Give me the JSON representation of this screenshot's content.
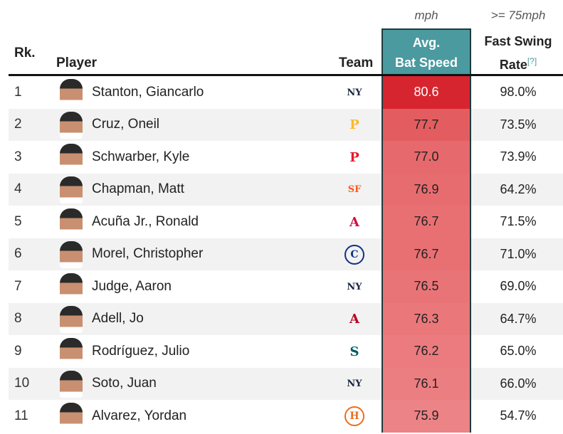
{
  "headers": {
    "rank": "Rk.",
    "player": "Player",
    "team": "Team",
    "bat_unit": "mph",
    "bat_line1": "Avg.",
    "bat_line2": "Bat Speed",
    "fsr_unit": ">= 75mph",
    "fsr_line1": "Fast Swing",
    "fsr_line2": "Rate",
    "fsr_help": "[?]"
  },
  "colors": {
    "header_accent": "#4a9aa0",
    "row_alt": "#f2f2f2"
  },
  "rows": [
    {
      "rank": "1",
      "player": "Stanton, Giancarlo",
      "team_icon": "yankees-logo",
      "team_glyph": "NY",
      "team_color": "#1c2841",
      "bat_speed": "80.6",
      "bat_bg": "#d7252f",
      "bat_fg": "#ffffff",
      "fsr": "98.0%"
    },
    {
      "rank": "2",
      "player": "Cruz, Oneil",
      "team_icon": "pirates-logo",
      "team_glyph": "P",
      "team_color": "#fdb827",
      "bat_speed": "77.7",
      "bat_bg": "#e35d60",
      "bat_fg": "#222222",
      "fsr": "73.5%"
    },
    {
      "rank": "3",
      "player": "Schwarber, Kyle",
      "team_icon": "phillies-logo",
      "team_glyph": "P",
      "team_color": "#e81828",
      "bat_speed": "77.0",
      "bat_bg": "#e66a6d",
      "bat_fg": "#222222",
      "fsr": "73.9%"
    },
    {
      "rank": "4",
      "player": "Chapman, Matt",
      "team_icon": "giants-logo",
      "team_glyph": "SF",
      "team_color": "#fd5a1e",
      "bat_speed": "76.9",
      "bat_bg": "#e76c6f",
      "bat_fg": "#222222",
      "fsr": "64.2%"
    },
    {
      "rank": "5",
      "player": "Acuña Jr., Ronald",
      "team_icon": "braves-logo",
      "team_glyph": "A",
      "team_color": "#ce1141",
      "bat_speed": "76.7",
      "bat_bg": "#e87073",
      "bat_fg": "#222222",
      "fsr": "71.5%"
    },
    {
      "rank": "6",
      "player": "Morel, Christopher",
      "team_icon": "cubs-logo",
      "team_glyph": "C",
      "team_color": "#0e3386",
      "bat_speed": "76.7",
      "bat_bg": "#e87073",
      "bat_fg": "#222222",
      "fsr": "71.0%"
    },
    {
      "rank": "7",
      "player": "Judge, Aaron",
      "team_icon": "yankees-logo",
      "team_glyph": "NY",
      "team_color": "#1c2841",
      "bat_speed": "76.5",
      "bat_bg": "#e97477",
      "bat_fg": "#222222",
      "fsr": "69.0%"
    },
    {
      "rank": "8",
      "player": "Adell, Jo",
      "team_icon": "angels-logo",
      "team_glyph": "A",
      "team_color": "#ba0021",
      "bat_speed": "76.3",
      "bat_bg": "#ea787b",
      "bat_fg": "#222222",
      "fsr": "64.7%"
    },
    {
      "rank": "9",
      "player": "Rodríguez, Julio",
      "team_icon": "mariners-logo",
      "team_glyph": "S",
      "team_color": "#005c5c",
      "bat_speed": "76.2",
      "bat_bg": "#eb7b7e",
      "bat_fg": "#222222",
      "fsr": "65.0%"
    },
    {
      "rank": "10",
      "player": "Soto, Juan",
      "team_icon": "yankees-logo",
      "team_glyph": "NY",
      "team_color": "#1c2841",
      "bat_speed": "76.1",
      "bat_bg": "#eb7e81",
      "bat_fg": "#222222",
      "fsr": "66.0%"
    },
    {
      "rank": "11",
      "player": "Alvarez, Yordan",
      "team_icon": "astros-logo",
      "team_glyph": "H",
      "team_color": "#eb6e1f",
      "bat_speed": "75.9",
      "bat_bg": "#ec8386",
      "bat_fg": "#222222",
      "fsr": "54.7%"
    }
  ]
}
